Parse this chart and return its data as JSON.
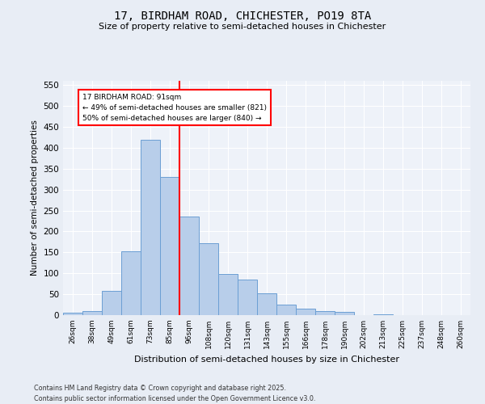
{
  "title_line1": "17, BIRDHAM ROAD, CHICHESTER, PO19 8TA",
  "title_line2": "Size of property relative to semi-detached houses in Chichester",
  "xlabel": "Distribution of semi-detached houses by size in Chichester",
  "ylabel": "Number of semi-detached properties",
  "footnote": "Contains HM Land Registry data © Crown copyright and database right 2025.\nContains public sector information licensed under the Open Government Licence v3.0.",
  "bar_labels": [
    "26sqm",
    "38sqm",
    "49sqm",
    "61sqm",
    "73sqm",
    "85sqm",
    "96sqm",
    "108sqm",
    "120sqm",
    "131sqm",
    "143sqm",
    "155sqm",
    "166sqm",
    "178sqm",
    "190sqm",
    "202sqm",
    "213sqm",
    "225sqm",
    "237sqm",
    "248sqm",
    "260sqm"
  ],
  "bar_heights": [
    5,
    10,
    57,
    153,
    420,
    330,
    235,
    172,
    98,
    85,
    52,
    26,
    15,
    9,
    7,
    0,
    1,
    0,
    0,
    0,
    0
  ],
  "bar_color": "#b8ceea",
  "bar_edge_color": "#6b9fd4",
  "vline_x": 5.5,
  "vline_color": "red",
  "annotation_title": "17 BIRDHAM ROAD: 91sqm",
  "annotation_line1": "← 49% of semi-detached houses are smaller (821)",
  "annotation_line2": "50% of semi-detached houses are larger (840) →",
  "ylim": [
    0,
    560
  ],
  "yticks": [
    0,
    50,
    100,
    150,
    200,
    250,
    300,
    350,
    400,
    450,
    500,
    550
  ],
  "bg_color": "#e8edf5",
  "plot_bg_color": "#eef2f9",
  "grid_color": "#ffffff"
}
